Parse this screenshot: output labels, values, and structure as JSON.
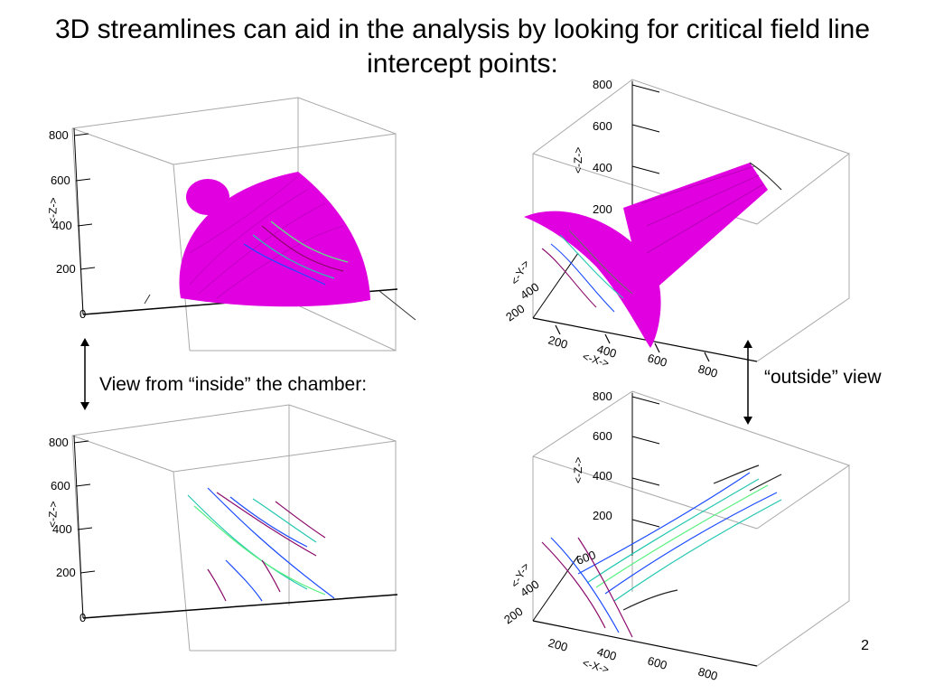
{
  "slide": {
    "title": "3D streamlines can aid in the analysis by looking for critical field line intercept points:",
    "caption_inside": "View from “inside” the chamber:",
    "caption_outside": "“outside” view",
    "page_number": "2"
  },
  "axes": {
    "z_ticks": [
      "800",
      "600",
      "400",
      "200",
      "0"
    ],
    "x_ticks": [
      "200",
      "400",
      "600",
      "800"
    ],
    "y_ticks": [
      "200",
      "400",
      "600"
    ],
    "z_name": "<-Z->",
    "x_name": "<-X->",
    "y_name": "<-Y->"
  },
  "colors": {
    "surface": "#e000e0",
    "box": "#a8a8a8",
    "streamline_palette": [
      "#8a0a6a",
      "#1c4cff",
      "#23c7b0",
      "#58f080",
      "#6a6a6a"
    ]
  }
}
